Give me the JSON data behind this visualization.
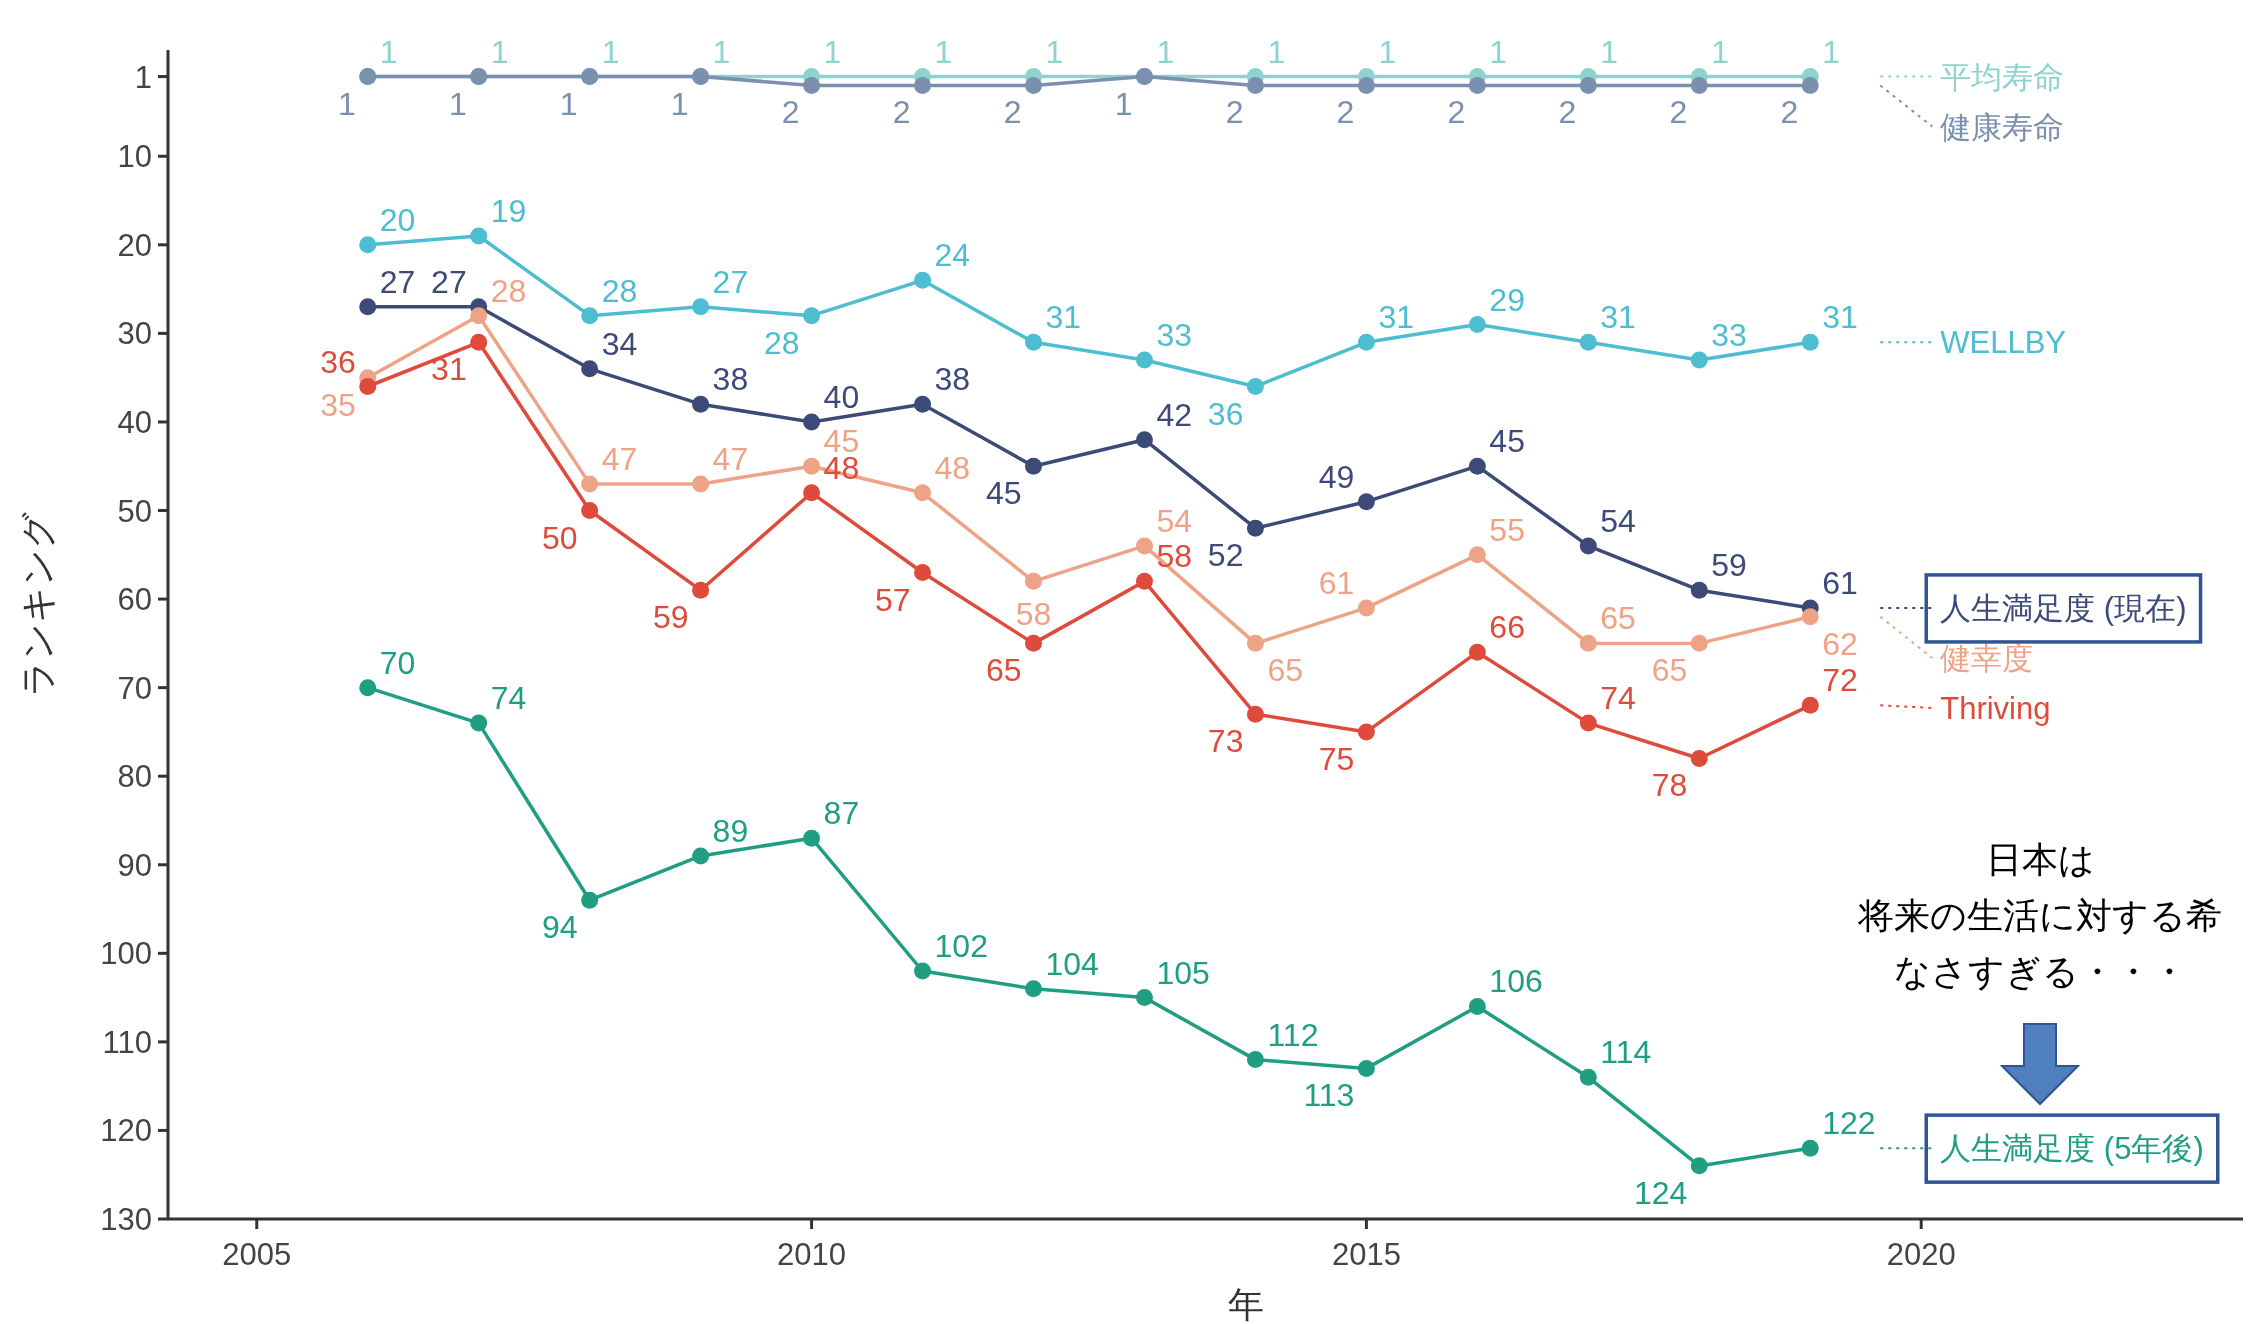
{
  "chart_data": {
    "type": "line",
    "xlabel": "年",
    "ylabel": "ランキング",
    "x": [
      2006,
      2007,
      2008,
      2009,
      2010,
      2011,
      2012,
      2013,
      2014,
      2015,
      2016,
      2017,
      2018,
      2019
    ],
    "series": [
      {
        "name": "平均寿命",
        "color": "#8fd3cf",
        "values": [
          1,
          1,
          1,
          1,
          1,
          1,
          1,
          1,
          1,
          1,
          1,
          1,
          1,
          1
        ]
      },
      {
        "name": "健康寿命",
        "color": "#7b8fae",
        "values": [
          1,
          1,
          1,
          1,
          2,
          2,
          2,
          1,
          2,
          2,
          2,
          2,
          2,
          2
        ]
      },
      {
        "name": "WELLBY",
        "color": "#4dbdd1",
        "values": [
          20,
          19,
          28,
          27,
          28,
          24,
          31,
          33,
          36,
          31,
          29,
          31,
          33,
          31
        ]
      },
      {
        "name": "人生満足度 (現在)",
        "color": "#3c4a78",
        "values": [
          27,
          27,
          34,
          38,
          40,
          38,
          45,
          42,
          52,
          49,
          45,
          54,
          59,
          61
        ]
      },
      {
        "name": "健幸度",
        "color": "#eea387",
        "values": [
          35,
          28,
          47,
          47,
          45,
          48,
          58,
          54,
          65,
          61,
          55,
          65,
          65,
          62
        ]
      },
      {
        "name": "Thriving",
        "color": "#de4b3a",
        "values": [
          36,
          31,
          50,
          59,
          48,
          57,
          65,
          58,
          73,
          75,
          66,
          74,
          78,
          72
        ]
      },
      {
        "name": "人生満足度 (5年後)",
        "color": "#1f9e82",
        "values": [
          70,
          74,
          94,
          89,
          87,
          102,
          104,
          105,
          112,
          113,
          106,
          114,
          124,
          122
        ]
      }
    ],
    "xlim": [
      2004.2,
      2022.9
    ],
    "xticks": [
      2005,
      2010,
      2015,
      2020
    ],
    "ylim": [
      130,
      -2
    ],
    "yticks": [
      1,
      10,
      20,
      30,
      40,
      50,
      60,
      70,
      80,
      90,
      100,
      110,
      120,
      130
    ],
    "data_labels": true,
    "marker": "circle",
    "line_style": "solid",
    "grid": false,
    "legend": "right",
    "annotations": [
      "日本は",
      "将来の生活に対する希",
      "なさすぎる・・・"
    ]
  }
}
